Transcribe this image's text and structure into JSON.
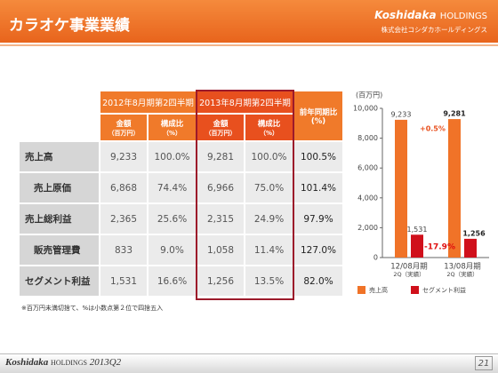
{
  "header": {
    "title": "カラオケ事業業績",
    "logo": "Koshidaka",
    "logo_sub": "HOLDINGS",
    "company": "株式会社コシダカホールディングス"
  },
  "table": {
    "period_headers": [
      "2012年8月期第2四半期",
      "2013年8月期第2四半期"
    ],
    "yoy_header": [
      "前年同期比",
      "(%)"
    ],
    "sub_headers": [
      [
        "金額",
        "（百万円）"
      ],
      [
        "構成比",
        "（%）"
      ],
      [
        "金額",
        "（百万円）"
      ],
      [
        "構成比",
        "（%）"
      ]
    ],
    "rows": [
      {
        "label": "売上高",
        "indent": false,
        "cells": [
          "9,233",
          "100.0%",
          "9,281",
          "100.0%",
          "100.5%"
        ]
      },
      {
        "label": "売上原価",
        "indent": true,
        "cells": [
          "6,868",
          "74.4%",
          "6,966",
          "75.0%",
          "101.4%"
        ]
      },
      {
        "label": "売上総利益",
        "indent": false,
        "cells": [
          "2,365",
          "25.6%",
          "2,315",
          "24.9%",
          "97.9%"
        ]
      },
      {
        "label": "販売管理費",
        "indent": true,
        "cells": [
          "833",
          "9.0%",
          "1,058",
          "11.4%",
          "127.0%"
        ]
      },
      {
        "label": "セグメント利益",
        "indent": false,
        "cells": [
          "1,531",
          "16.6%",
          "1,256",
          "13.5%",
          "82.0%"
        ]
      }
    ]
  },
  "footnote": "※百万円未満切捨て、%は小数点第２位で四捨五入",
  "chart_data": {
    "type": "bar",
    "y_label": "(百万円)",
    "categories": [
      [
        "12/08月期",
        "2Q（実績）"
      ],
      [
        "13/08月期",
        "2Q（実績）"
      ]
    ],
    "series": [
      {
        "name": "売上高",
        "color": "#f07328",
        "values": [
          9233,
          9281
        ],
        "value_labels": [
          "9,233",
          "9,281"
        ]
      },
      {
        "name": "セグメント利益",
        "color": "#d0101b",
        "values": [
          1531,
          1256
        ],
        "value_labels": [
          "1,531",
          "1,256"
        ]
      }
    ],
    "annotations": [
      "+0.5%",
      "-17.9%"
    ],
    "ylim": [
      0,
      10000
    ],
    "yticks": [
      0,
      {
        "value": 2000,
        "label": "2,000"
      },
      {
        "value": 4000,
        "label": "4,000"
      },
      {
        "value": 6000,
        "label": "6,000"
      },
      {
        "value": 8000,
        "label": "8,000"
      },
      {
        "value": 10000,
        "label": "10,000"
      }
    ]
  },
  "footer": {
    "brand": "Koshidaka",
    "brand_sub": "HOLDINGS",
    "period": "2013Q2",
    "page": "21"
  }
}
